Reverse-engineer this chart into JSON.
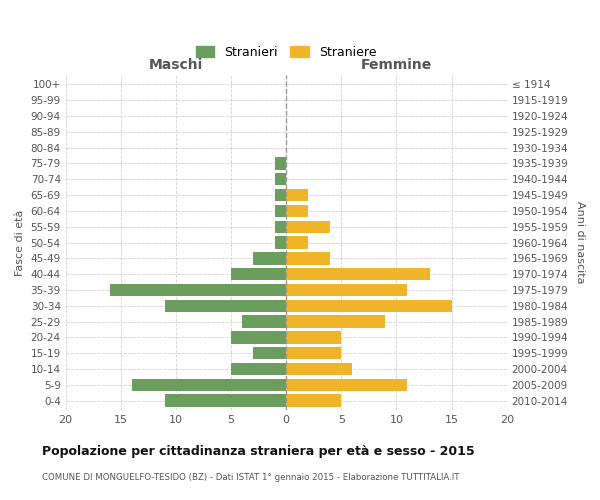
{
  "age_groups": [
    "0-4",
    "5-9",
    "10-14",
    "15-19",
    "20-24",
    "25-29",
    "30-34",
    "35-39",
    "40-44",
    "45-49",
    "50-54",
    "55-59",
    "60-64",
    "65-69",
    "70-74",
    "75-79",
    "80-84",
    "85-89",
    "90-94",
    "95-99",
    "100+"
  ],
  "birth_years": [
    "2010-2014",
    "2005-2009",
    "2000-2004",
    "1995-1999",
    "1990-1994",
    "1985-1989",
    "1980-1984",
    "1975-1979",
    "1970-1974",
    "1965-1969",
    "1960-1964",
    "1955-1959",
    "1950-1954",
    "1945-1949",
    "1940-1944",
    "1935-1939",
    "1930-1934",
    "1925-1929",
    "1920-1924",
    "1915-1919",
    "≤ 1914"
  ],
  "males": [
    11,
    14,
    5,
    3,
    5,
    4,
    11,
    16,
    5,
    3,
    1,
    1,
    1,
    1,
    1,
    1,
    0,
    0,
    0,
    0,
    0
  ],
  "females": [
    5,
    11,
    6,
    5,
    5,
    9,
    15,
    11,
    13,
    4,
    2,
    4,
    2,
    2,
    0,
    0,
    0,
    0,
    0,
    0,
    0
  ],
  "male_color": "#6b9e5e",
  "female_color": "#f0b429",
  "background_color": "#ffffff",
  "grid_color": "#cccccc",
  "title": "Popolazione per cittadinanza straniera per età e sesso - 2015",
  "subtitle": "COMUNE DI MONGUELFO-TESIDO (BZ) - Dati ISTAT 1° gennaio 2015 - Elaborazione TUTTITALIA.IT",
  "xlabel_left": "Maschi",
  "xlabel_right": "Femmine",
  "ylabel_left": "Fasce di età",
  "ylabel_right": "Anni di nascita",
  "legend_male": "Stranieri",
  "legend_female": "Straniere",
  "xlim": 20
}
